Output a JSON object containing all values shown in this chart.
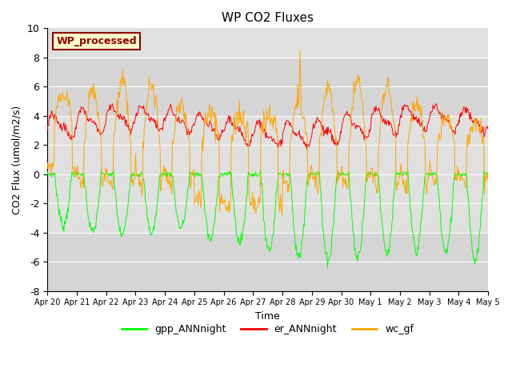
{
  "title": "WP CO2 Fluxes",
  "xlabel": "Time",
  "ylabel": "CO2 Flux (umol/m2/s)",
  "ylim": [
    -8,
    10
  ],
  "annotation_text": "WP_processed",
  "annotation_color": "#8B0000",
  "annotation_bg": "#FFFFCC",
  "annotation_edge": "#8B0000",
  "line_colors": {
    "gpp": "#00FF00",
    "er": "#FF0000",
    "wc": "#FFA500"
  },
  "legend_labels": [
    "gpp_ANNnight",
    "er_ANNnight",
    "wc_gf"
  ],
  "n_days": 15,
  "points_per_day": 48,
  "gray_band_color": "#DCDCDC",
  "background_color": "#E8E8E8",
  "xtick_labels": [
    "Apr 20",
    "Apr 21",
    "Apr 22",
    "Apr 23",
    "Apr 24",
    "Apr 25",
    "Apr 26",
    "Apr 27",
    "Apr 28",
    "Apr 29",
    "Apr 30",
    "May 1",
    "May 2",
    "May 3",
    "May 4",
    "May 5"
  ],
  "font_size": 9,
  "title_font_size": 11
}
